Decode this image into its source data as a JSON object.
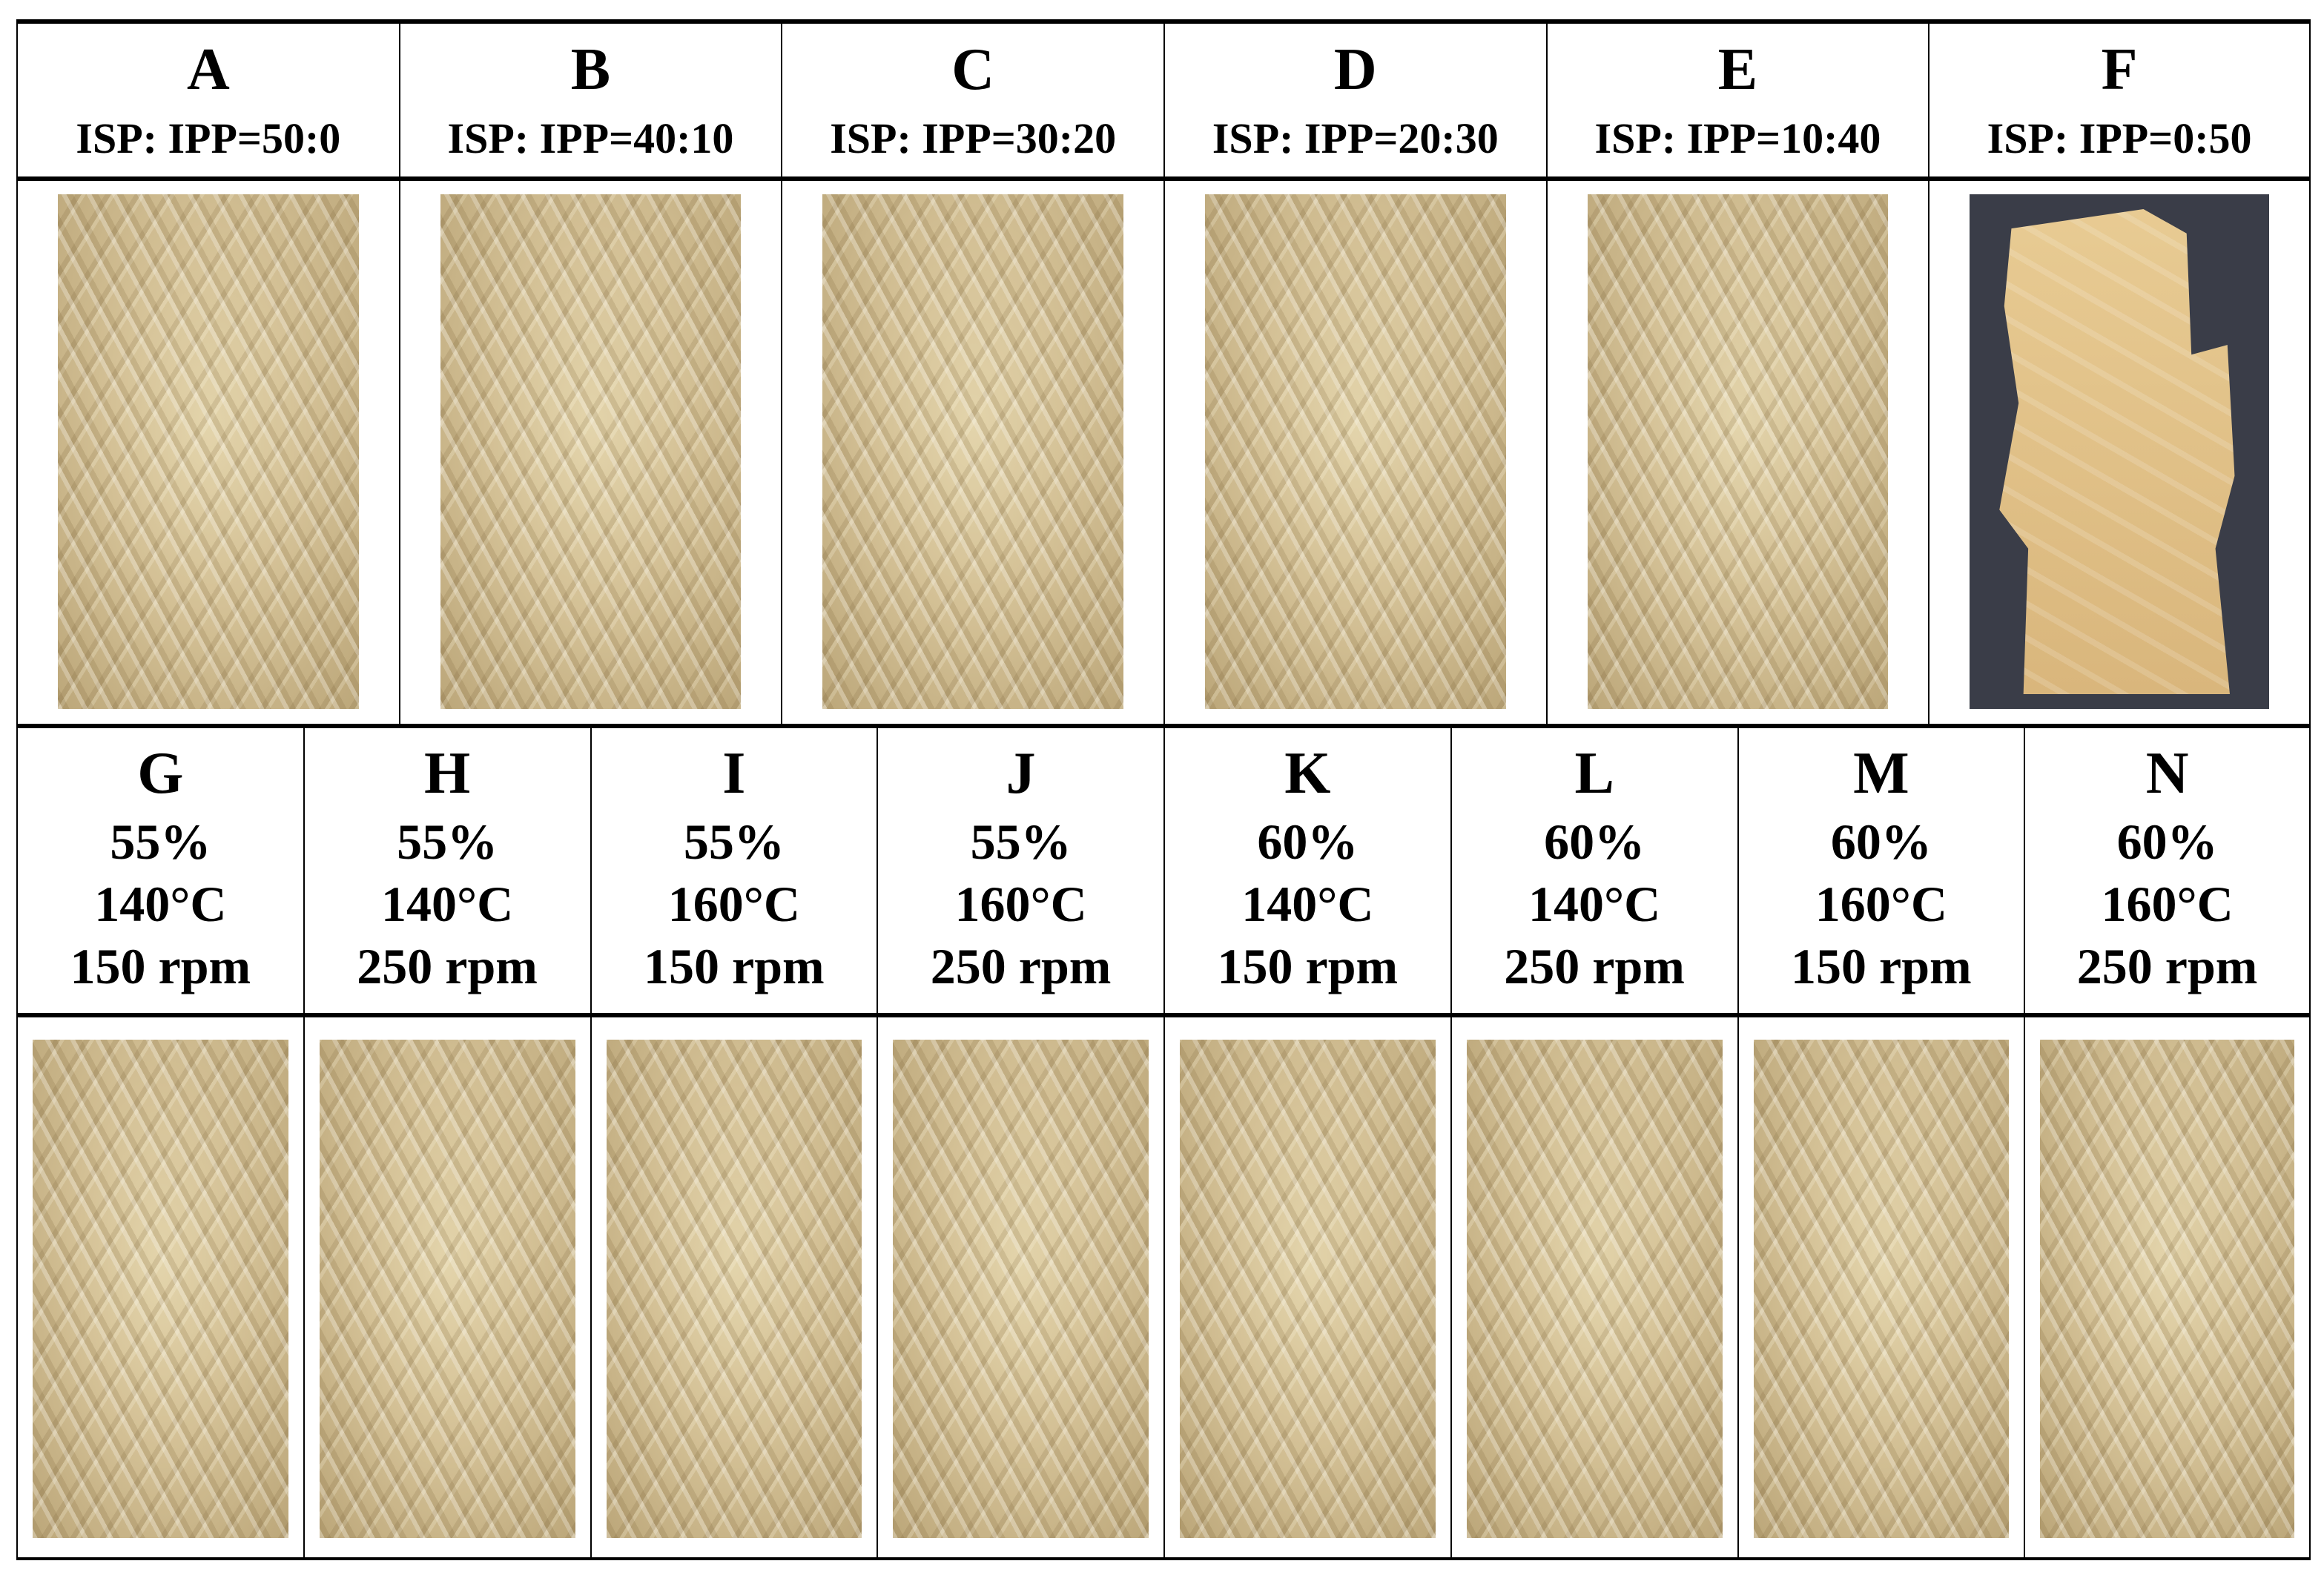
{
  "top_row": [
    {
      "letter": "A",
      "ratio": "ISP: IPP=50:0"
    },
    {
      "letter": "B",
      "ratio": "ISP: IPP=40:10"
    },
    {
      "letter": "C",
      "ratio": "ISP: IPP=30:20"
    },
    {
      "letter": "D",
      "ratio": "ISP: IPP=20:30"
    },
    {
      "letter": "E",
      "ratio": "ISP: IPP=10:40"
    },
    {
      "letter": "F",
      "ratio": "ISP: IPP=0:50"
    }
  ],
  "bottom_row": [
    {
      "letter": "G",
      "moisture": "55%",
      "temperature": "140°C",
      "speed": "150 rpm"
    },
    {
      "letter": "H",
      "moisture": "55%",
      "temperature": "140°C",
      "speed": "250 rpm"
    },
    {
      "letter": "I",
      "moisture": "55%",
      "temperature": "160°C",
      "speed": "150 rpm"
    },
    {
      "letter": "J",
      "moisture": "55%",
      "temperature": "160°C",
      "speed": "250 rpm"
    },
    {
      "letter": "K",
      "moisture": "60%",
      "temperature": "140°C",
      "speed": "150 rpm"
    },
    {
      "letter": "L",
      "moisture": "60%",
      "temperature": "140°C",
      "speed": "250 rpm"
    },
    {
      "letter": "M",
      "moisture": "60%",
      "temperature": "160°C",
      "speed": "150 rpm"
    },
    {
      "letter": "N",
      "moisture": "60%",
      "temperature": "160°C",
      "speed": "250 rpm"
    }
  ],
  "colors": {
    "sample": "#d4c196",
    "photo_background_F": "#3a3d48"
  }
}
